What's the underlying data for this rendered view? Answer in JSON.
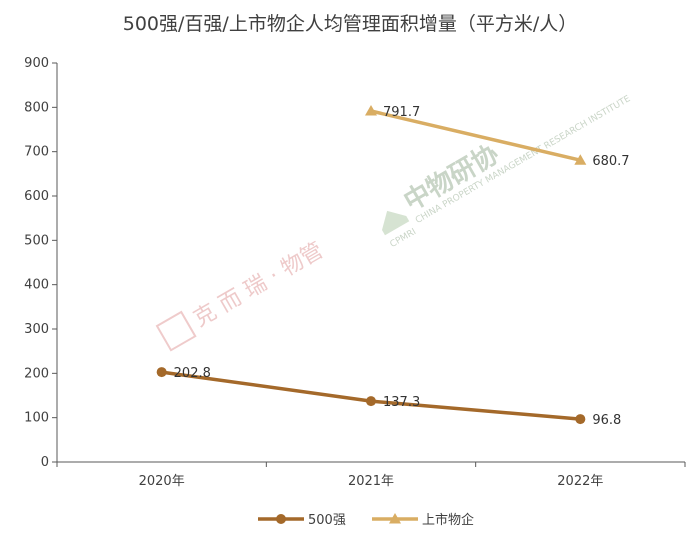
{
  "chart_data": {
    "type": "line",
    "title": "500强/百强/上市物企人均管理面积增量（平方米/人）",
    "xlabel": "",
    "ylabel": "",
    "categories": [
      "2020年",
      "2021年",
      "2022年"
    ],
    "ylim": [
      0,
      900
    ],
    "yticks": [
      0,
      100,
      200,
      300,
      400,
      500,
      600,
      700,
      800,
      900
    ],
    "grid": false,
    "legend": "bottom",
    "series": [
      {
        "name": "500强",
        "values": [
          202.8,
          137.3,
          96.8
        ],
        "labels": [
          "202.8",
          "137.3",
          "96.8"
        ],
        "color": "#a4692a",
        "marker": "circle"
      },
      {
        "name": "上市物企",
        "values": [
          null,
          791.7,
          680.7
        ],
        "labels": [
          "",
          "791.7",
          "680.7"
        ],
        "color": "#d9ad63",
        "marker": "triangle"
      }
    ]
  },
  "watermarks": {
    "left": "克 而 瑞 · 物管",
    "left_seal": "克而瑞",
    "center": "中物研协",
    "center_sub": "CHINA PROPERTY MANAGEMENT RESEARCH INSTITUTE",
    "center_abbr": "CPMRI"
  }
}
